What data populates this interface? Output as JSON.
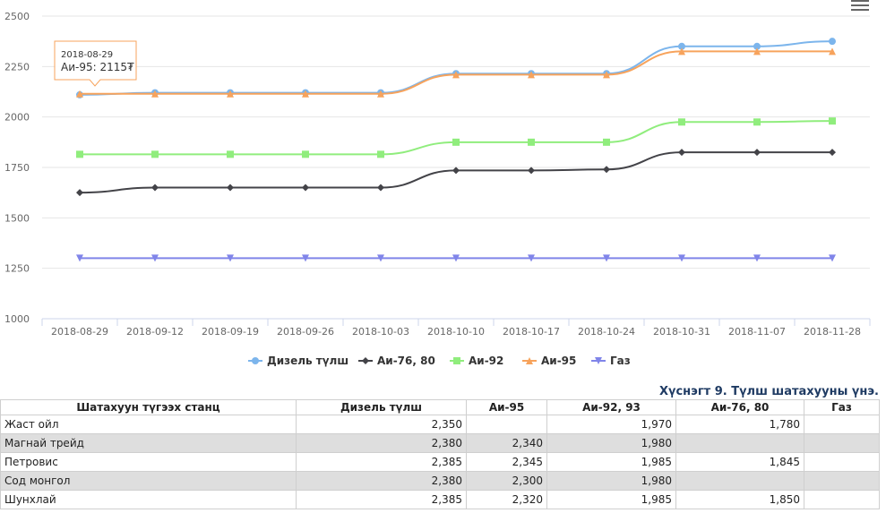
{
  "chart_data": {
    "type": "line",
    "categories": [
      "2018-08-29",
      "2018-09-12",
      "2018-09-19",
      "2018-09-26",
      "2018-10-03",
      "2018-10-10",
      "2018-10-17",
      "2018-10-24",
      "2018-10-31",
      "2018-11-07",
      "2018-11-28"
    ],
    "ylim": [
      1000,
      2500
    ],
    "yticks": [
      1000,
      1250,
      1500,
      1750,
      2000,
      2250,
      2500
    ],
    "grid": true,
    "legend_position": "bottom",
    "series": [
      {
        "name": "Дизель түлш",
        "color": "#7cb5ec",
        "marker": "circle",
        "values": [
          2110,
          2120,
          2120,
          2120,
          2120,
          2215,
          2215,
          2215,
          2350,
          2350,
          2375
        ]
      },
      {
        "name": "Аи-76, 80",
        "color": "#434348",
        "marker": "diamond",
        "values": [
          1625,
          1650,
          1650,
          1650,
          1650,
          1735,
          1735,
          1740,
          1825,
          1825,
          1825
        ]
      },
      {
        "name": "Аи-92",
        "color": "#90ed7d",
        "marker": "square",
        "values": [
          1815,
          1815,
          1815,
          1815,
          1815,
          1875,
          1875,
          1875,
          1975,
          1975,
          1980
        ]
      },
      {
        "name": "Аи-95",
        "color": "#f7a35c",
        "marker": "triangle",
        "values": [
          2115,
          2115,
          2115,
          2115,
          2115,
          2210,
          2210,
          2210,
          2325,
          2325,
          2325
        ]
      },
      {
        "name": "Газ",
        "color": "#8085e9",
        "marker": "triangle-down",
        "values": [
          1300,
          1300,
          1300,
          1300,
          1300,
          1300,
          1300,
          1300,
          1300,
          1300,
          1300
        ]
      }
    ],
    "tooltip": {
      "date": "2018-08-29",
      "text": "Аи-95: 2115₮"
    }
  },
  "table": {
    "caption": "Хүснэгт 9. Түлш шатахууны үнэ.",
    "headers": [
      "Шатахуун түгээх станц",
      "Дизель түлш",
      "Аи-95",
      "Аи-92, 93",
      "Аи-76, 80",
      "Газ"
    ],
    "rows": [
      [
        "Жаст ойл",
        "2,350",
        "",
        "1,970",
        "1,780",
        ""
      ],
      [
        "Магнай трейд",
        "2,380",
        "2,340",
        "1,980",
        "",
        ""
      ],
      [
        "Петровис",
        "2,385",
        "2,345",
        "1,985",
        "1,845",
        ""
      ],
      [
        "Сод монгол",
        "2,380",
        "2,300",
        "1,980",
        "",
        ""
      ],
      [
        "Шунхлай",
        "2,385",
        "2,320",
        "1,985",
        "1,850",
        ""
      ]
    ]
  }
}
